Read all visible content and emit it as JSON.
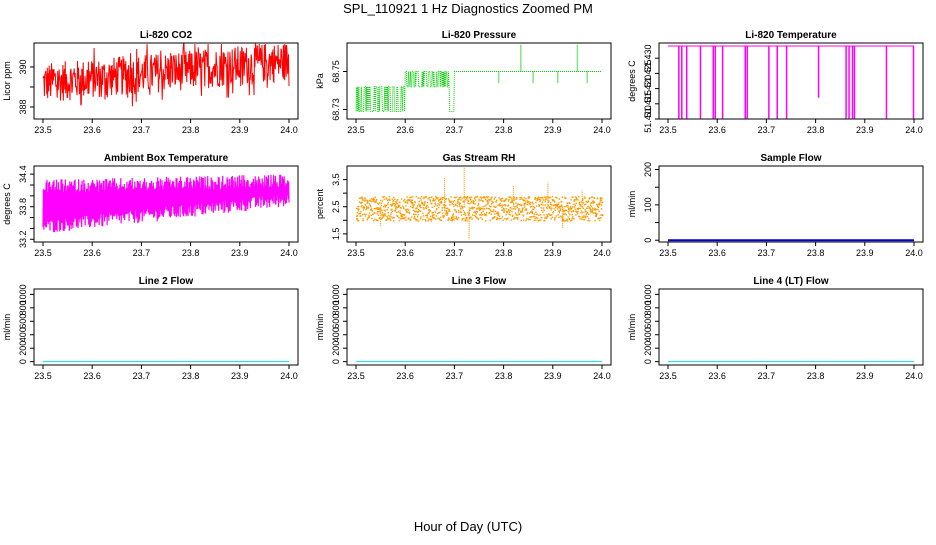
{
  "main_title": "SPL_110921  1 Hz Diagnostics Zoomed PM",
  "xlabel": "Hour of Day (UTC)",
  "chart_data": [
    {
      "type": "line",
      "title": "Li-820 CO2",
      "ylabel": "Licor ppm",
      "color": "#ff0000",
      "xlim": [
        23.5,
        24.0
      ],
      "ylim": [
        387.4,
        391.2
      ],
      "xticks": [
        "23.5",
        "23.6",
        "23.7",
        "23.8",
        "23.9",
        "24.0"
      ],
      "yticks": [
        {
          "value": 388,
          "label": "388"
        },
        {
          "value": 389,
          "label": ""
        },
        {
          "value": 390,
          "label": "390"
        }
      ],
      "series": [
        {
          "name": "CO2",
          "x": [
            23.5,
            23.55,
            23.6,
            23.65,
            23.7,
            23.75,
            23.8,
            23.85,
            23.9,
            23.95,
            24.0
          ],
          "values": [
            389.2,
            389.4,
            389.5,
            389.6,
            389.7,
            389.8,
            389.9,
            390.0,
            390.1,
            390.2,
            390.3
          ],
          "noise": 1.0
        }
      ]
    },
    {
      "type": "line",
      "title": "Li-820 Pressure",
      "ylabel": "kPa",
      "color": "#00cc00",
      "xlim": [
        23.5,
        24.0
      ],
      "ylim": [
        68.725,
        68.765
      ],
      "xticks": [
        "23.5",
        "23.6",
        "23.7",
        "23.8",
        "23.9",
        "24.0"
      ],
      "yticks": [
        {
          "value": 68.73,
          "label": "68.73"
        },
        {
          "value": 68.75,
          "label": "68.75"
        }
      ],
      "series": [
        {
          "name": "Pressure",
          "x": [
            23.5,
            23.55,
            23.6,
            23.65,
            23.7,
            23.75,
            23.8,
            23.85,
            23.9,
            23.95,
            24.0
          ],
          "values": [
            68.742,
            68.742,
            68.748,
            68.75,
            68.75,
            68.75,
            68.75,
            68.75,
            68.75,
            68.75,
            68.75
          ],
          "levels": [
            68.729,
            68.742,
            68.75,
            68.757,
            68.764
          ]
        }
      ]
    },
    {
      "type": "line",
      "title": "Li-820 Temperature",
      "ylabel": "degrees C",
      "color": "#ff00ff",
      "xlim": [
        23.5,
        24.0
      ],
      "ylim": [
        51.41,
        51.435
      ],
      "xticks": [
        "23.5",
        "23.6",
        "23.7",
        "23.8",
        "23.9",
        "24.0"
      ],
      "yticks": [
        {
          "value": 51.41,
          "label": "51.410"
        },
        {
          "value": 51.415,
          "label": "51.415"
        },
        {
          "value": 51.42,
          "label": "51.420"
        },
        {
          "value": 51.425,
          "label": "51.425"
        },
        {
          "value": 51.43,
          "label": "51.430"
        }
      ],
      "series": [
        {
          "name": "Temperature",
          "x": [
            23.5,
            24.0
          ],
          "values": [
            51.434,
            51.434
          ],
          "dips": [
            23.522,
            23.528,
            23.538,
            23.566,
            23.592,
            23.596,
            23.611,
            23.657,
            23.661,
            23.705,
            23.722,
            23.741,
            23.806,
            23.862,
            23.868,
            23.875,
            23.879,
            23.944,
            23.999
          ]
        }
      ]
    },
    {
      "type": "line",
      "title": "Ambient Box Temperature",
      "ylabel": "degrees C",
      "color": "#ff00ff",
      "xlim": [
        23.5,
        24.0
      ],
      "ylim": [
        33.15,
        34.55
      ],
      "xticks": [
        "23.5",
        "23.6",
        "23.7",
        "23.8",
        "23.9",
        "24.0"
      ],
      "yticks": [
        {
          "value": 33.2,
          "label": "33.2"
        },
        {
          "value": 33.4,
          "label": ""
        },
        {
          "value": 33.6,
          "label": ""
        },
        {
          "value": 33.8,
          "label": "33.8"
        },
        {
          "value": 34.0,
          "label": ""
        },
        {
          "value": 34.2,
          "label": ""
        },
        {
          "value": 34.4,
          "label": "34.4"
        }
      ],
      "series": [
        {
          "name": "Ambient",
          "x": [
            23.5,
            24.0
          ],
          "values": [
            33.8,
            33.8
          ],
          "lows": [
            33.3,
            33.8
          ],
          "highs": [
            34.3,
            34.4
          ]
        }
      ]
    },
    {
      "type": "scatter",
      "title": "Gas Stream RH",
      "ylabel": "percent",
      "color": "#ff9900",
      "xlim": [
        23.5,
        24.0
      ],
      "ylim": [
        1.2,
        4.0
      ],
      "xticks": [
        "23.5",
        "23.6",
        "23.7",
        "23.8",
        "23.9",
        "24.0"
      ],
      "yticks": [
        {
          "value": 1.5,
          "label": "1.5"
        },
        {
          "value": 2.0,
          "label": ""
        },
        {
          "value": 2.5,
          "label": "2.5"
        },
        {
          "value": 3.0,
          "label": ""
        },
        {
          "value": 3.5,
          "label": "3.5"
        }
      ],
      "series": [
        {
          "name": "RH",
          "x": [
            23.5,
            24.0
          ],
          "values": [
            2.5,
            2.5
          ],
          "range": [
            2.0,
            2.9
          ]
        }
      ]
    },
    {
      "type": "line",
      "title": "Sample Flow",
      "ylabel": "ml/min",
      "color": "#0000cc",
      "xlim": [
        23.5,
        24.0
      ],
      "ylim": [
        -5,
        210
      ],
      "xticks": [
        "23.5",
        "23.6",
        "23.7",
        "23.8",
        "23.9",
        "24.0"
      ],
      "yticks": [
        {
          "value": 0,
          "label": "0"
        },
        {
          "value": 50,
          "label": ""
        },
        {
          "value": 100,
          "label": "100"
        },
        {
          "value": 150,
          "label": ""
        },
        {
          "value": 200,
          "label": "200"
        }
      ],
      "series": [
        {
          "name": "Sample Flow",
          "x": [
            23.5,
            24.0
          ],
          "values": [
            0,
            0
          ]
        }
      ]
    },
    {
      "type": "line",
      "title": "Line 2 Flow",
      "ylabel": "ml/min",
      "color": "#00e5ee",
      "xlim": [
        23.5,
        24.0
      ],
      "ylim": [
        -50,
        1080
      ],
      "xticks": [
        "23.5",
        "23.6",
        "23.7",
        "23.8",
        "23.9",
        "24.0"
      ],
      "yticks": [
        {
          "value": 0,
          "label": "0"
        },
        {
          "value": 200,
          "label": "200"
        },
        {
          "value": 400,
          "label": "400"
        },
        {
          "value": 600,
          "label": "600"
        },
        {
          "value": 800,
          "label": "800"
        },
        {
          "value": 1000,
          "label": "1000"
        }
      ],
      "series": [
        {
          "name": "Line 2",
          "x": [
            23.5,
            24.0
          ],
          "values": [
            0,
            0
          ]
        }
      ]
    },
    {
      "type": "line",
      "title": "Line 3 Flow",
      "ylabel": "ml/min",
      "color": "#00e5ee",
      "xlim": [
        23.5,
        24.0
      ],
      "ylim": [
        -50,
        1080
      ],
      "xticks": [
        "23.5",
        "23.6",
        "23.7",
        "23.8",
        "23.9",
        "24.0"
      ],
      "yticks": [
        {
          "value": 0,
          "label": "0"
        },
        {
          "value": 200,
          "label": "200"
        },
        {
          "value": 400,
          "label": "400"
        },
        {
          "value": 600,
          "label": "600"
        },
        {
          "value": 800,
          "label": "800"
        },
        {
          "value": 1000,
          "label": "1000"
        }
      ],
      "series": [
        {
          "name": "Line 3",
          "x": [
            23.5,
            24.0
          ],
          "values": [
            0,
            0
          ]
        }
      ]
    },
    {
      "type": "line",
      "title": "Line 4 (LT) Flow",
      "ylabel": "ml/min",
      "color": "#00e5ee",
      "xlim": [
        23.5,
        24.0
      ],
      "ylim": [
        -50,
        1080
      ],
      "xticks": [
        "23.5",
        "23.6",
        "23.7",
        "23.8",
        "23.9",
        "24.0"
      ],
      "yticks": [
        {
          "value": 0,
          "label": "0"
        },
        {
          "value": 200,
          "label": "200"
        },
        {
          "value": 400,
          "label": "400"
        },
        {
          "value": 600,
          "label": "600"
        },
        {
          "value": 800,
          "label": "800"
        },
        {
          "value": 1000,
          "label": "1000"
        }
      ],
      "series": [
        {
          "name": "Line 4",
          "x": [
            23.5,
            24.0
          ],
          "values": [
            0,
            0
          ]
        }
      ]
    }
  ]
}
